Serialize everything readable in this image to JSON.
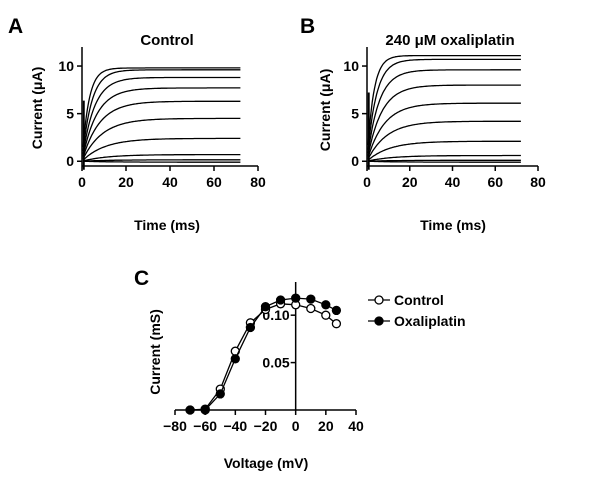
{
  "chart_data": [
    {
      "panel": "A",
      "type": "line",
      "title": "Control",
      "xlabel": "Time (ms)",
      "ylabel": "Current (μA)",
      "xlim": [
        0,
        80
      ],
      "ylim": [
        -0.5,
        12
      ],
      "xticks": [
        0,
        20,
        40,
        60,
        80
      ],
      "yticks": [
        0,
        5,
        10
      ],
      "grid": false,
      "legend": "none",
      "trace_duration_ms": 72,
      "steady_state_currents": [
        9.8,
        9.6,
        8.8,
        7.7,
        6.3,
        4.5,
        2.4,
        0.7,
        0.15,
        -0.1
      ]
    },
    {
      "panel": "B",
      "type": "line",
      "title": "240 μM oxaliplatin",
      "xlabel": "Time (ms)",
      "ylabel": "Current (μA)",
      "xlim": [
        0,
        80
      ],
      "ylim": [
        -0.5,
        12
      ],
      "xticks": [
        0,
        20,
        40,
        60,
        80
      ],
      "yticks": [
        0,
        5,
        10
      ],
      "grid": false,
      "legend": "none",
      "trace_duration_ms": 72,
      "steady_state_currents": [
        11.1,
        10.7,
        9.6,
        8.0,
        6.1,
        4.2,
        2.1,
        0.6,
        0.1,
        -0.1
      ]
    },
    {
      "panel": "C",
      "type": "line",
      "title": "",
      "xlabel": "Voltage (mV)",
      "ylabel": "Current (mS)",
      "xlim": [
        -80,
        40
      ],
      "ylim": [
        0,
        0.135
      ],
      "xticks": [
        -80,
        -60,
        -40,
        -20,
        0,
        20,
        40
      ],
      "yticks": [
        0.05,
        0.1
      ],
      "ytick_labels": [
        "0.05",
        "0.10"
      ],
      "grid": false,
      "legend": "top-right",
      "x": [
        -70,
        -60,
        -50,
        -40,
        -30,
        -20,
        -10,
        0,
        10,
        20,
        27
      ],
      "series": [
        {
          "name": "Control",
          "marker": "open-circle",
          "values": [
            0,
            0.001,
            0.022,
            0.062,
            0.092,
            0.106,
            0.112,
            0.111,
            0.107,
            0.1,
            0.091
          ]
        },
        {
          "name": "Oxaliplatin",
          "marker": "filled-circle",
          "values": [
            0,
            0,
            0.017,
            0.054,
            0.087,
            0.109,
            0.116,
            0.118,
            0.117,
            0.111,
            0.105
          ]
        }
      ]
    }
  ]
}
